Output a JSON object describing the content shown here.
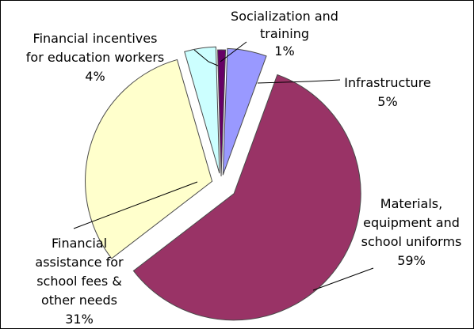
{
  "chart_data": {
    "type": "pie",
    "title": "",
    "slices": [
      {
        "label_lines": [
          "Infrastructure"
        ],
        "percent_label": "5%",
        "value": 5,
        "color": "#9999ff"
      },
      {
        "label_lines": [
          "Materials,",
          "equipment and",
          "school uniforms"
        ],
        "percent_label": "59%",
        "value": 59,
        "color": "#993366"
      },
      {
        "label_lines": [
          "Financial",
          "assistance for",
          "school fees &",
          "other needs"
        ],
        "percent_label": "31%",
        "value": 31,
        "color": "#ffffcc"
      },
      {
        "label_lines": [
          "Financial incentives",
          "for education workers"
        ],
        "percent_label": "4%",
        "value": 4,
        "color": "#ccffff"
      },
      {
        "label_lines": [
          "Socialization and",
          "training"
        ],
        "percent_label": "1%",
        "value": 1,
        "color": "#660066"
      }
    ],
    "legend": "none",
    "data_labels": "outside with leader lines",
    "exploded": true
  }
}
